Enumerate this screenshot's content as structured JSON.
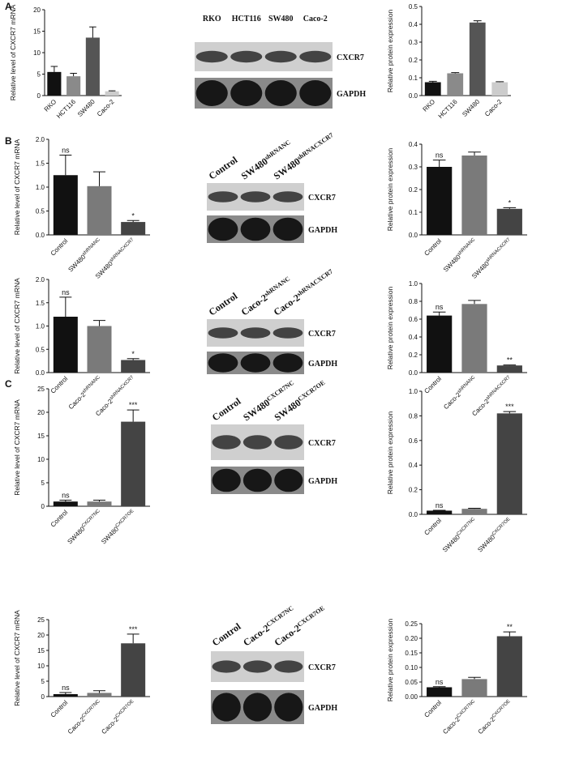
{
  "panel_labels": [
    "A",
    "B",
    "C"
  ],
  "chart_data": [
    {
      "type": "bar",
      "ylabel": "Relative level of CXCR7 mRNA",
      "categories": [
        "RKO",
        "HCT116",
        "SW480",
        "Caco-2"
      ],
      "values": [
        5.5,
        4.5,
        13.5,
        1.0
      ],
      "errors": [
        1.3,
        0.7,
        2.5,
        0.1
      ],
      "colors": [
        "#111111",
        "#8a8a8a",
        "#555555",
        "#cccccc"
      ],
      "ylim": [
        0,
        20
      ],
      "yticks": [
        0,
        5,
        10,
        15,
        20
      ]
    },
    {
      "type": "bar",
      "ylabel": "Relative protein expression",
      "categories": [
        "RKO",
        "HCT116",
        "SW480",
        "Caco-2"
      ],
      "values": [
        0.075,
        0.125,
        0.41,
        0.075
      ],
      "errors": [
        0.005,
        0.004,
        0.01,
        0.003
      ],
      "colors": [
        "#111111",
        "#8a8a8a",
        "#555555",
        "#cccccc"
      ],
      "ylim": [
        0,
        0.5
      ],
      "yticks": [
        {
          "value": 0,
          "label": "0.0"
        },
        0.1,
        0.2,
        0.3,
        0.4,
        0.5
      ]
    },
    {
      "type": "bar",
      "ylabel": "Relative level of CXCR7 mRNA",
      "categories": [
        "Control",
        "SW480",
        "SW480"
      ],
      "category_superscripts": [
        null,
        "shRNANC",
        "shRNACXCR7"
      ],
      "values": [
        1.25,
        1.02,
        0.27
      ],
      "errors": [
        0.42,
        0.3,
        0.03
      ],
      "annotations": [
        "ns",
        null,
        "*"
      ],
      "colors": [
        "#111111",
        "#7a7a7a",
        "#444444"
      ],
      "ylim": [
        0,
        2.0
      ],
      "yticks": [
        {
          "value": 0,
          "label": "0.0"
        },
        0.5,
        {
          "value": 1,
          "label": "1.0"
        },
        1.5,
        {
          "value": 2,
          "label": "2.0"
        }
      ]
    },
    {
      "type": "bar",
      "ylabel": "Relative protein expression",
      "categories": [
        "Control",
        "SW480",
        "SW480"
      ],
      "category_superscripts": [
        null,
        "shRNANC",
        "shRNACXCR7"
      ],
      "values": [
        0.3,
        0.35,
        0.115
      ],
      "errors": [
        0.03,
        0.015,
        0.005
      ],
      "annotations": [
        "ns",
        null,
        "*"
      ],
      "colors": [
        "#111111",
        "#7a7a7a",
        "#444444"
      ],
      "ylim": [
        0,
        0.4
      ],
      "yticks": [
        {
          "value": 0,
          "label": "0.0"
        },
        0.1,
        0.2,
        0.3,
        0.4
      ]
    },
    {
      "type": "bar",
      "ylabel": "Relative level of CXCR7 mRNA",
      "categories": [
        "Control",
        "Caco-2",
        "Caco-2"
      ],
      "category_superscripts": [
        null,
        "shRNANC",
        "shRNACXCR7"
      ],
      "values": [
        1.2,
        1.0,
        0.27
      ],
      "errors": [
        0.42,
        0.12,
        0.03
      ],
      "annotations": [
        "ns",
        null,
        "*"
      ],
      "colors": [
        "#111111",
        "#7a7a7a",
        "#444444"
      ],
      "ylim": [
        0,
        2.0
      ],
      "yticks": [
        {
          "value": 0,
          "label": "0.0"
        },
        0.5,
        {
          "value": 1,
          "label": "1.0"
        },
        1.5,
        {
          "value": 2,
          "label": "2.0"
        }
      ]
    },
    {
      "type": "bar",
      "ylabel": "Relative protein expression",
      "categories": [
        "Control",
        "Caco-2",
        "Caco-2"
      ],
      "category_superscripts": [
        null,
        "shRNANC",
        "shRNACXCR7"
      ],
      "values": [
        0.64,
        0.77,
        0.08
      ],
      "errors": [
        0.04,
        0.04,
        0.005
      ],
      "annotations": [
        "ns",
        null,
        "**"
      ],
      "colors": [
        "#111111",
        "#7a7a7a",
        "#444444"
      ],
      "ylim": [
        0,
        1.0
      ],
      "yticks": [
        {
          "value": 0,
          "label": "0.0"
        },
        0.2,
        0.4,
        0.6,
        0.8,
        {
          "value": 1,
          "label": "1.0"
        }
      ]
    },
    {
      "type": "bar",
      "ylabel": "Relative level of CXCR7 mRNA",
      "categories": [
        "Control",
        "SW480",
        "SW480"
      ],
      "category_superscripts": [
        null,
        "CXCR7NC",
        "CXCR7OE"
      ],
      "values": [
        1.0,
        1.0,
        18
      ],
      "errors": [
        0.3,
        0.3,
        2.5
      ],
      "annotations": [
        "ns",
        null,
        "***"
      ],
      "colors": [
        "#111111",
        "#7a7a7a",
        "#444444"
      ],
      "ylim": [
        0,
        25
      ],
      "yticks": [
        0,
        5,
        10,
        15,
        20,
        25
      ]
    },
    {
      "type": "bar",
      "ylabel": "Relative protein expression",
      "categories": [
        "Control",
        "SW480",
        "SW480"
      ],
      "category_superscripts": [
        null,
        "CXCR7NC",
        "CXCR7OE"
      ],
      "values": [
        0.03,
        0.045,
        0.82
      ],
      "errors": [
        0.003,
        0.004,
        0.015
      ],
      "annotations": [
        "ns",
        null,
        "***"
      ],
      "colors": [
        "#111111",
        "#7a7a7a",
        "#444444"
      ],
      "ylim": [
        0,
        1.0
      ],
      "yticks": [
        {
          "value": 0,
          "label": "0.0"
        },
        0.2,
        0.4,
        0.6,
        0.8,
        {
          "value": 1,
          "label": "1.0"
        }
      ]
    },
    {
      "type": "bar",
      "ylabel": "Relative level of CXCR7 mRNA",
      "categories": [
        "Control",
        "Caco-2",
        "Caco-2"
      ],
      "category_superscripts": [
        null,
        "CXCR7NC",
        "CXCR7OE"
      ],
      "values": [
        0.8,
        1.2,
        17.3
      ],
      "errors": [
        0.5,
        0.7,
        3
      ],
      "annotations": [
        "ns",
        null,
        "***"
      ],
      "colors": [
        "#111111",
        "#7a7a7a",
        "#444444"
      ],
      "ylim": [
        0,
        25
      ],
      "yticks": [
        0,
        5,
        10,
        15,
        20,
        25
      ]
    },
    {
      "type": "bar",
      "ylabel": "Relative protein expression",
      "categories": [
        "Control",
        "Caco-2",
        "Caco-2"
      ],
      "category_superscripts": [
        null,
        "CXCR7NC",
        "CXCR7OE"
      ],
      "values": [
        0.032,
        0.06,
        0.207
      ],
      "errors": [
        0.002,
        0.006,
        0.015
      ],
      "annotations": [
        "ns",
        null,
        "**"
      ],
      "colors": [
        "#111111",
        "#7a7a7a",
        "#444444"
      ],
      "ylim": [
        0,
        0.25
      ],
      "yticks": [
        {
          "value": 0,
          "label": "0.00"
        },
        0.05,
        {
          "value": 0.1,
          "label": "0.10"
        },
        0.15,
        {
          "value": 0.2,
          "label": "0.20"
        },
        0.25
      ]
    }
  ],
  "blots": [
    {
      "lanes": [
        "RKO",
        "HCT116",
        "SW480",
        "Caco-2"
      ],
      "bands": [
        "CXCR7",
        "GAPDH"
      ]
    },
    {
      "lanes": [
        "Control",
        "SW480",
        "SW480"
      ],
      "lane_superscripts": [
        null,
        "shRNANC",
        "shRNACXCR7"
      ],
      "bands": [
        "CXCR7",
        "GAPDH"
      ]
    },
    {
      "lanes": [
        "Control",
        "Caco-2",
        "Caco-2"
      ],
      "lane_superscripts": [
        null,
        "shRNANC",
        "shRNACXCR7"
      ],
      "bands": [
        "CXCR7",
        "GAPDH"
      ]
    },
    {
      "lanes": [
        "Control",
        "SW480",
        "SW480"
      ],
      "lane_superscripts": [
        null,
        "CXCR7NC",
        "CXCR7OE"
      ],
      "bands": [
        "CXCR7",
        "GAPDH"
      ]
    },
    {
      "lanes": [
        "Control",
        "Caco-2",
        "Caco-2"
      ],
      "lane_superscripts": [
        null,
        "CXCR7NC",
        "CXCR7OE"
      ],
      "bands": [
        "CXCR7",
        "GAPDH"
      ]
    }
  ]
}
